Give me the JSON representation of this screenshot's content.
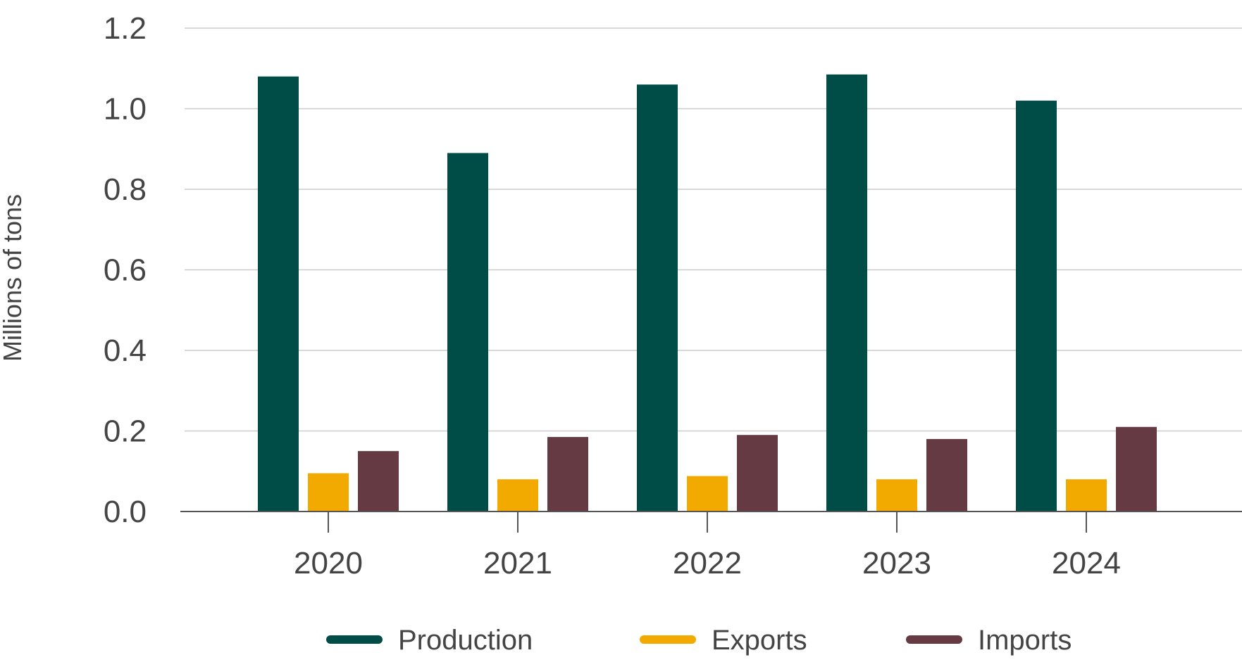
{
  "chart_data": {
    "type": "bar",
    "title": "",
    "xlabel": "",
    "ylabel": "Millions of tons",
    "ylim": [
      0,
      1.2
    ],
    "yticks": [
      "0.0",
      "0.2",
      "0.4",
      "0.6",
      "0.8",
      "1.0",
      "1.2"
    ],
    "grid": true,
    "legend_position": "bottom",
    "categories": [
      "2020",
      "2021",
      "2022",
      "2023",
      "2024"
    ],
    "series": [
      {
        "name": "Production",
        "color": "#004d47",
        "values": [
          1.08,
          0.89,
          1.06,
          1.085,
          1.02
        ]
      },
      {
        "name": "Exports",
        "color": "#f2a900",
        "values": [
          0.095,
          0.08,
          0.088,
          0.08,
          0.08
        ]
      },
      {
        "name": "Imports",
        "color": "#653a42",
        "values": [
          0.15,
          0.185,
          0.19,
          0.18,
          0.21
        ]
      }
    ]
  }
}
